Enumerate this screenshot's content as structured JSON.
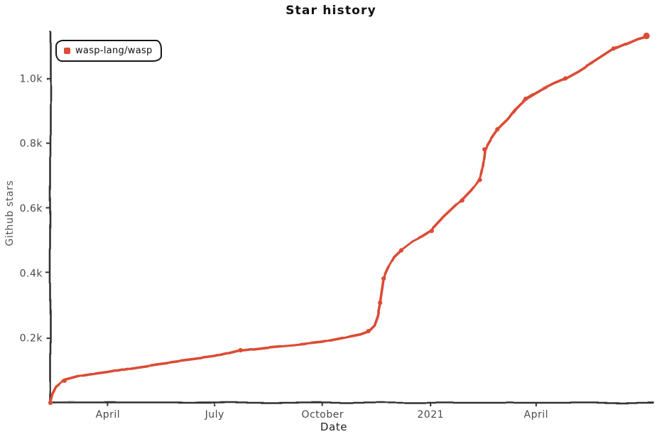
{
  "title": "Star history",
  "legend": {
    "items": [
      {
        "label": "wasp-lang/wasp",
        "color": "#DB4C35"
      }
    ]
  },
  "axes": {
    "x_label": "Date",
    "y_label": "Github stars"
  },
  "colors": {
    "background": "#ffffff",
    "series": "#DB4C35",
    "axis": "#333333",
    "tick_text": "#4a4a4a",
    "title_text": "#111111"
  },
  "chart_data": {
    "type": "line",
    "title": "Star history",
    "xlabel": "Date",
    "ylabel": "Github stars",
    "legend_position": "top-left",
    "grid": false,
    "x_range": [
      "2020-02-12",
      "2021-07-10"
    ],
    "ylim": [
      0,
      1143
    ],
    "x_ticks": [
      {
        "date": "2020-04-01",
        "label": "April"
      },
      {
        "date": "2020-07-01",
        "label": "July"
      },
      {
        "date": "2020-10-01",
        "label": "October"
      },
      {
        "date": "2021-01-01",
        "label": "2021"
      },
      {
        "date": "2021-04-01",
        "label": "April"
      }
    ],
    "y_ticks": [
      {
        "value": 200,
        "label": "0.2k"
      },
      {
        "value": 400,
        "label": "0.4k"
      },
      {
        "value": 600,
        "label": "0.6k"
      },
      {
        "value": 800,
        "label": "0.8k"
      },
      {
        "value": 1000,
        "label": "1.0k"
      }
    ],
    "series": [
      {
        "name": "wasp-lang/wasp",
        "color": "#DB4C35",
        "points": [
          {
            "date": "2020-02-12",
            "stars": 0,
            "marker": true
          },
          {
            "date": "2020-02-14",
            "stars": 26,
            "marker": false
          },
          {
            "date": "2020-02-17",
            "stars": 48,
            "marker": false
          },
          {
            "date": "2020-02-24",
            "stars": 68,
            "marker": true
          },
          {
            "date": "2020-03-08",
            "stars": 81,
            "marker": false
          },
          {
            "date": "2020-03-20",
            "stars": 88,
            "marker": false
          },
          {
            "date": "2020-04-01",
            "stars": 94,
            "marker": false
          },
          {
            "date": "2020-04-20",
            "stars": 107,
            "marker": false
          },
          {
            "date": "2020-05-14",
            "stars": 120,
            "marker": false
          },
          {
            "date": "2020-06-07",
            "stars": 131,
            "marker": false
          },
          {
            "date": "2020-07-01",
            "stars": 142,
            "marker": false
          },
          {
            "date": "2020-07-23",
            "stars": 162,
            "marker": true
          },
          {
            "date": "2020-08-13",
            "stars": 171,
            "marker": false
          },
          {
            "date": "2020-09-06",
            "stars": 179,
            "marker": false
          },
          {
            "date": "2020-09-30",
            "stars": 188,
            "marker": false
          },
          {
            "date": "2020-10-18",
            "stars": 201,
            "marker": false
          },
          {
            "date": "2020-11-02",
            "stars": 212,
            "marker": false
          },
          {
            "date": "2020-11-09",
            "stars": 221,
            "marker": true
          },
          {
            "date": "2020-11-14",
            "stars": 239,
            "marker": false
          },
          {
            "date": "2020-11-17",
            "stars": 269,
            "marker": false
          },
          {
            "date": "2020-11-19",
            "stars": 308,
            "marker": true
          },
          {
            "date": "2020-11-22",
            "stars": 383,
            "marker": true
          },
          {
            "date": "2020-11-27",
            "stars": 424,
            "marker": false
          },
          {
            "date": "2020-12-01",
            "stars": 449,
            "marker": false
          },
          {
            "date": "2020-12-07",
            "stars": 470,
            "marker": true
          },
          {
            "date": "2020-12-17",
            "stars": 497,
            "marker": false
          },
          {
            "date": "2020-12-25",
            "stars": 512,
            "marker": false
          },
          {
            "date": "2021-01-02",
            "stars": 530,
            "marker": true
          },
          {
            "date": "2021-01-13",
            "stars": 573,
            "marker": false
          },
          {
            "date": "2021-01-28",
            "stars": 624,
            "marker": true
          },
          {
            "date": "2021-02-05",
            "stars": 654,
            "marker": false
          },
          {
            "date": "2021-02-12",
            "stars": 687,
            "marker": true
          },
          {
            "date": "2021-02-14",
            "stars": 722,
            "marker": false
          },
          {
            "date": "2021-02-15",
            "stars": 748,
            "marker": false
          },
          {
            "date": "2021-02-16",
            "stars": 781,
            "marker": true
          },
          {
            "date": "2021-02-21",
            "stars": 812,
            "marker": false
          },
          {
            "date": "2021-02-27",
            "stars": 843,
            "marker": true
          },
          {
            "date": "2021-03-08",
            "stars": 875,
            "marker": false
          },
          {
            "date": "2021-03-15",
            "stars": 908,
            "marker": false
          },
          {
            "date": "2021-03-23",
            "stars": 937,
            "marker": true
          },
          {
            "date": "2021-04-05",
            "stars": 965,
            "marker": false
          },
          {
            "date": "2021-04-16",
            "stars": 985,
            "marker": false
          },
          {
            "date": "2021-04-26",
            "stars": 1000,
            "marker": true
          },
          {
            "date": "2021-05-08",
            "stars": 1024,
            "marker": false
          },
          {
            "date": "2021-05-22",
            "stars": 1057,
            "marker": false
          },
          {
            "date": "2021-06-06",
            "stars": 1092,
            "marker": true
          },
          {
            "date": "2021-06-19",
            "stars": 1112,
            "marker": false
          },
          {
            "date": "2021-06-26",
            "stars": 1123,
            "marker": false
          },
          {
            "date": "2021-07-04",
            "stars": 1131,
            "marker": true
          }
        ]
      }
    ]
  }
}
